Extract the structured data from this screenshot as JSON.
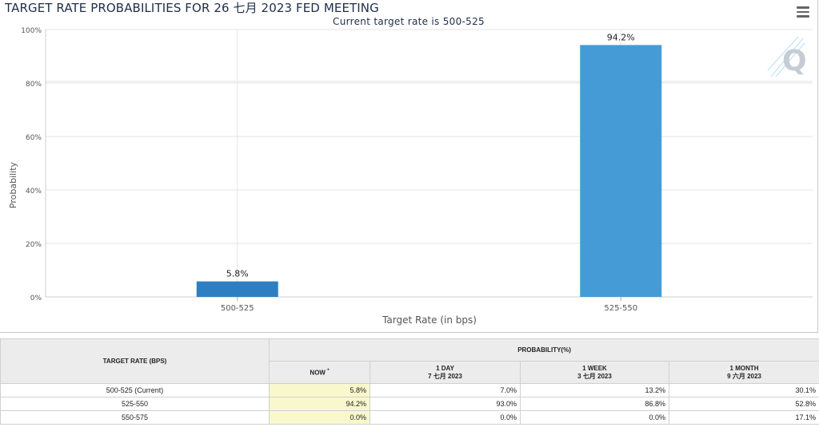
{
  "chart_data": {
    "type": "bar",
    "title": "TARGET RATE PROBABILITIES FOR 26 七月 2023 FED MEETING",
    "subtitle": "Current target rate is 500-525",
    "xlabel": "Target Rate (in bps)",
    "ylabel": "Probability",
    "categories": [
      "500-525",
      "525-550"
    ],
    "values": [
      5.8,
      94.2
    ],
    "data_labels": [
      "5.8%",
      "94.2%"
    ],
    "bar_colors": [
      "#2e7fc1",
      "#459bd6"
    ],
    "ylim": [
      0,
      100
    ],
    "yticks": [
      0,
      20,
      40,
      60,
      80,
      100
    ],
    "ytick_labels": [
      "0%",
      "20%",
      "40%",
      "60%",
      "80%",
      "100%"
    ],
    "grid": true,
    "legend": "none"
  },
  "menu_icon": "hamburger-menu-icon",
  "watermark_icon": "quikstrike-q-logo",
  "table": {
    "rate_header": "TARGET RATE (BPS)",
    "prob_header": "PROBABILITY(%)",
    "now_label": "NOW",
    "now_marker": "*",
    "col_1day": "1 DAY",
    "col_1day_date": "7 七月 2023",
    "col_1week": "1 WEEK",
    "col_1week_date": "3 七月 2023",
    "col_1month": "1 MONTH",
    "col_1month_date": "9 六月 2023",
    "rows": [
      {
        "rate": "500-525 (Current)",
        "now": "5.8%",
        "day1": "7.0%",
        "week1": "13.2%",
        "month1": "30.1%"
      },
      {
        "rate": "525-550",
        "now": "94.2%",
        "day1": "93.0%",
        "week1": "86.8%",
        "month1": "52.8%"
      },
      {
        "rate": "550-575",
        "now": "0.0%",
        "day1": "0.0%",
        "week1": "0.0%",
        "month1": "17.1%"
      }
    ]
  },
  "colors": {
    "bar_1": "#2e7fc1",
    "bar_2": "#459bd6",
    "now_highlight": "#f8f8cc",
    "title": "#1f2e4a"
  }
}
